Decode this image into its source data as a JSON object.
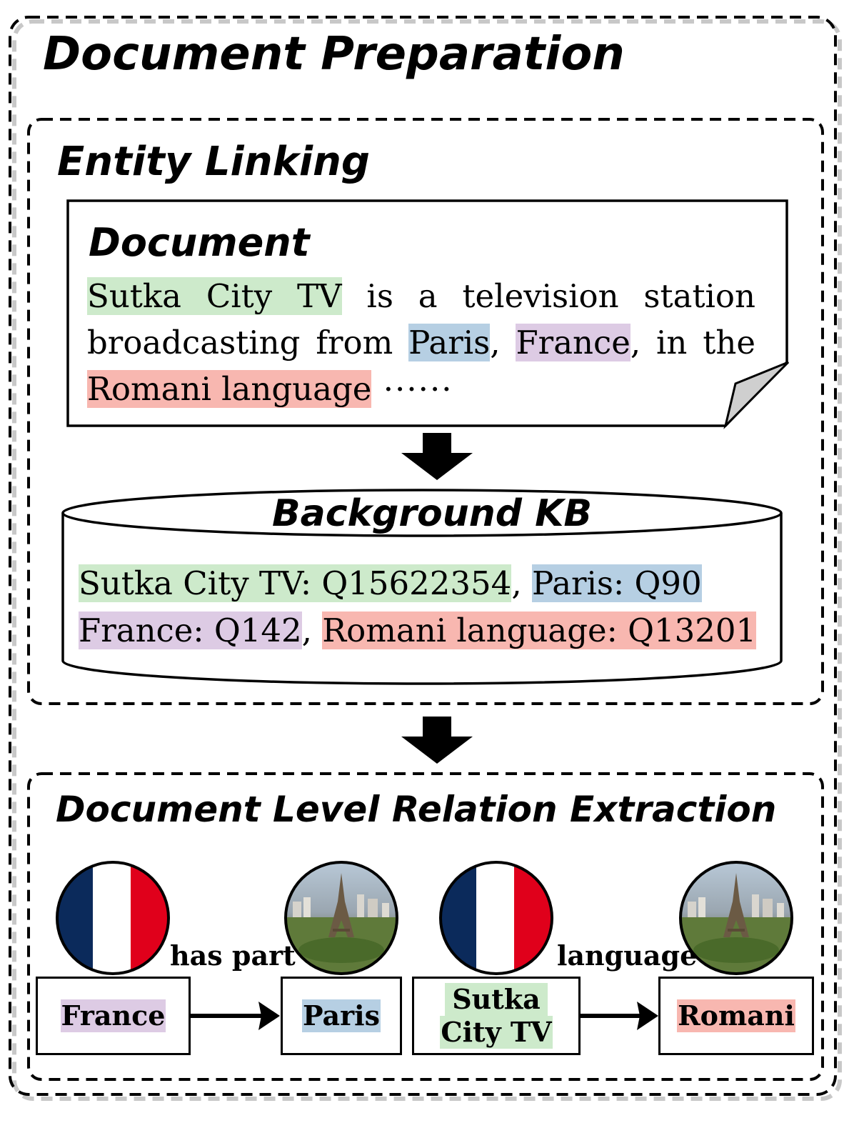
{
  "title": "Document Preparation",
  "entity_linking": {
    "heading": "Entity Linking",
    "document": {
      "heading": "Document",
      "line1": [
        {
          "text": "Sutka City TV",
          "color": "green"
        },
        {
          "text": " is a television station",
          "color": ""
        }
      ],
      "line2": [
        {
          "text": "broadcasting from ",
          "color": ""
        },
        {
          "text": "Paris",
          "color": "blue"
        },
        {
          "text": ", ",
          "color": ""
        },
        {
          "text": "France",
          "color": "purple"
        },
        {
          "text": ", in the",
          "color": ""
        }
      ],
      "line3": [
        {
          "text": "Romani language",
          "color": "red"
        },
        {
          "text": " ······",
          "color": ""
        }
      ]
    },
    "kb": {
      "heading": "Background KB",
      "line1": [
        {
          "text": "Sutka City TV: Q15622354",
          "color": "green"
        },
        {
          "text": ", ",
          "color": ""
        },
        {
          "text": "Paris:  Q90",
          "color": "blue"
        }
      ],
      "line2": [
        {
          "text": "France: Q142",
          "color": "purple"
        },
        {
          "text": ", ",
          "color": ""
        },
        {
          "text": "Romani language: Q13201",
          "color": "red"
        }
      ]
    }
  },
  "relation_extraction": {
    "heading": "Document Level Relation Extraction",
    "entities": {
      "france": {
        "label": "France",
        "icon": "france-flag-icon",
        "color": "purple"
      },
      "paris": {
        "label": "Paris",
        "icon": "paris-photo-icon",
        "color": "blue"
      },
      "sutka_line1": "Sutka",
      "sutka_line2": "City TV",
      "sutka": {
        "icon": "france-flag-icon",
        "color": "green"
      },
      "romani": {
        "label": "Romani",
        "icon": "paris-photo-icon",
        "color": "red"
      }
    },
    "relations": {
      "has_part": "has part",
      "language": "language"
    }
  },
  "colors": {
    "green": "#cdeacb",
    "blue": "#b6cfe3",
    "purple": "#ddcbe4",
    "red": "#f8b7b0",
    "flag_blue": "#0b2a5b",
    "flag_red": "#e0001b"
  }
}
